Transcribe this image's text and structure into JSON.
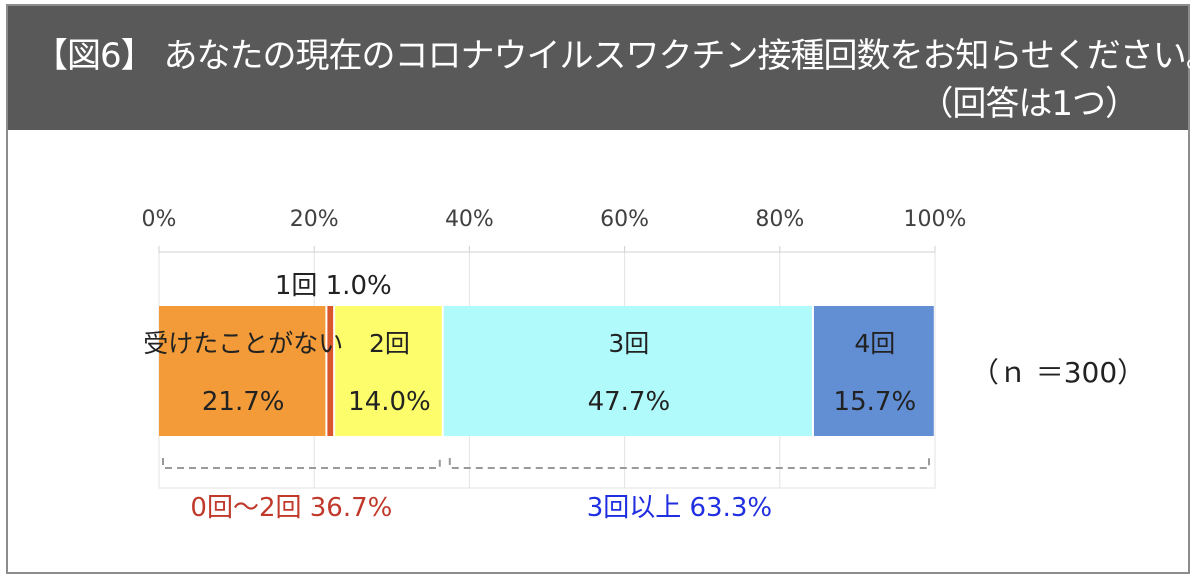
{
  "header": {
    "title_line1": "【図6】 あなたの現在のコロナウイルスワクチン接種回数をお知らせください。",
    "title_line2": "（回答は1つ）"
  },
  "chart_data": {
    "type": "bar",
    "orientation": "horizontal",
    "stacked": true,
    "xlim": [
      0,
      100
    ],
    "x_ticks": [
      "0%",
      "20%",
      "40%",
      "60%",
      "80%",
      "100%"
    ],
    "series": [
      {
        "name": "受けたことがない",
        "value": 21.7,
        "value_label": "21.7%",
        "color": "#f29b38"
      },
      {
        "name": "1回",
        "value": 1.0,
        "value_label": "1.0%",
        "color": "#d9572b"
      },
      {
        "name": "2回",
        "value": 14.0,
        "value_label": "14.0%",
        "color": "#fdfd6b"
      },
      {
        "name": "3回",
        "value": 47.7,
        "value_label": "47.7%",
        "color": "#b1fafb"
      },
      {
        "name": "4回",
        "value": 15.7,
        "value_label": "15.7%",
        "color": "#628ed3"
      }
    ],
    "sample_size_label": "（ｎ ＝300）",
    "groups": [
      {
        "label": "0回～2回  36.7%",
        "from": 0,
        "to": 36.7,
        "color": "#c0392b"
      },
      {
        "label": "3回以上  63.3%",
        "from": 36.7,
        "to": 100,
        "color": "#1f2ee0"
      }
    ],
    "grid": true
  }
}
